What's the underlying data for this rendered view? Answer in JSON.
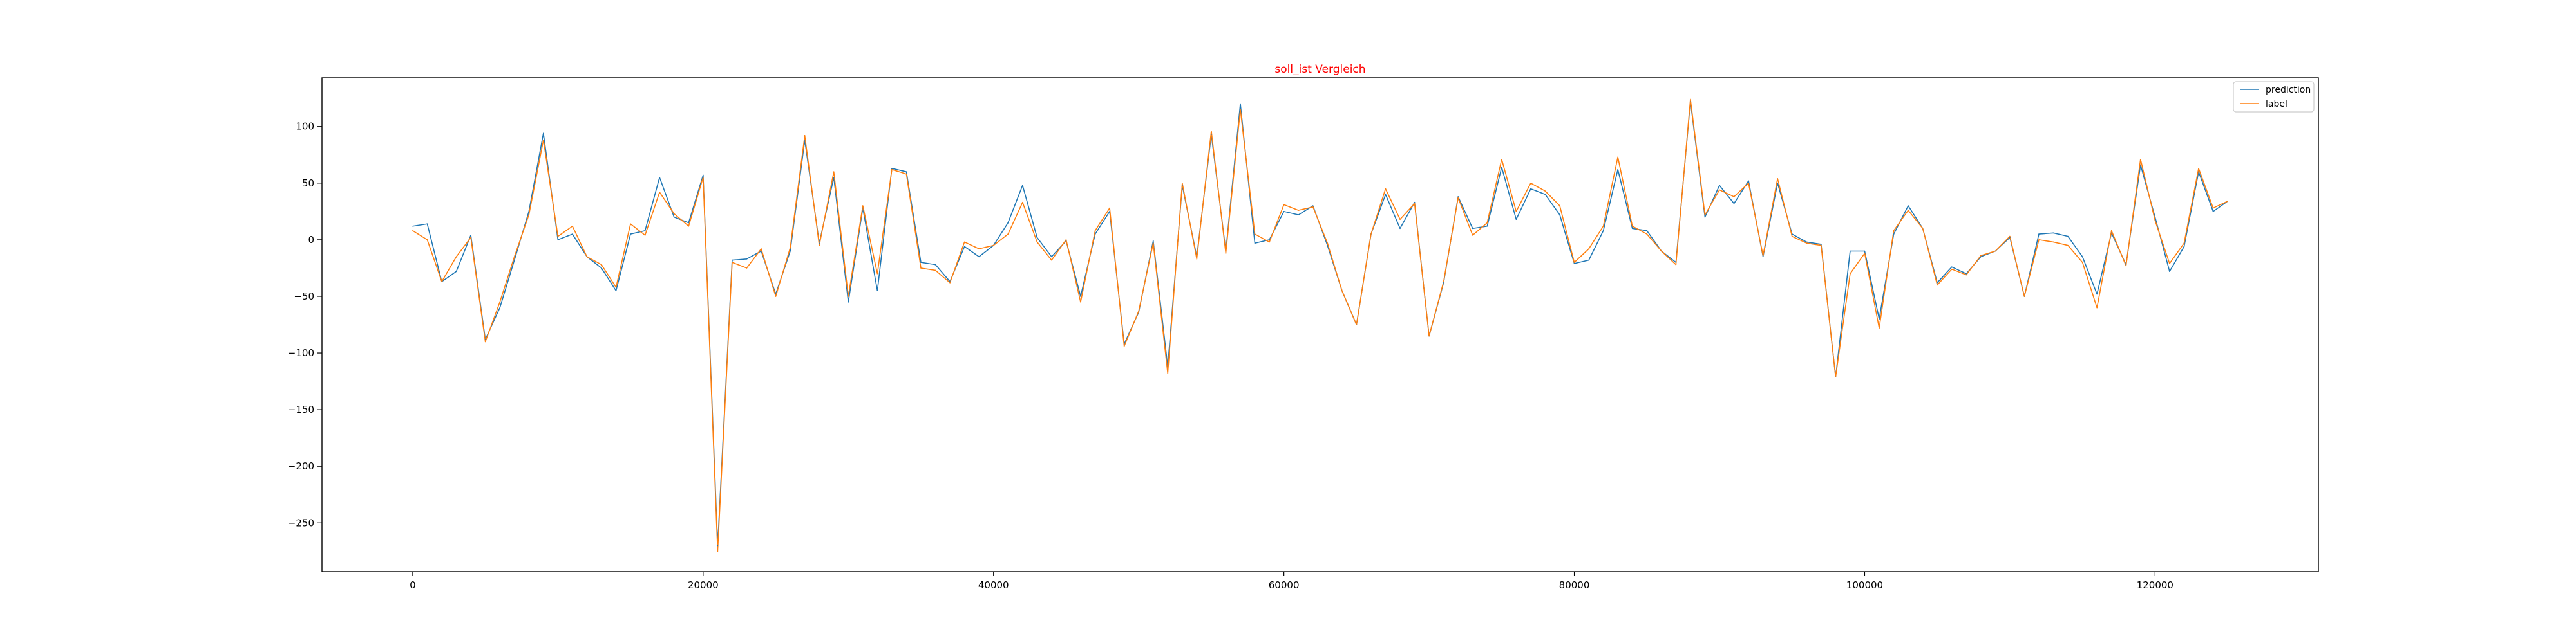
{
  "chart_data": {
    "type": "line",
    "title": "soll_ist Vergleich",
    "title_color": "#ff0000",
    "xlabel": "",
    "ylabel": "",
    "xlim": [
      -6250,
      131250
    ],
    "ylim": [
      -293,
      143
    ],
    "x_ticks": [
      0,
      20000,
      40000,
      60000,
      80000,
      100000,
      120000
    ],
    "x_tick_labels": [
      "0",
      "20000",
      "40000",
      "60000",
      "80000",
      "100000",
      "120000"
    ],
    "y_ticks": [
      -250,
      -200,
      -150,
      -100,
      -50,
      0,
      50,
      100
    ],
    "y_tick_labels": [
      "−250",
      "−200",
      "−150",
      "−100",
      "−50",
      "0",
      "50",
      "100"
    ],
    "grid": false,
    "legend_position": "top-right",
    "x_start": 0,
    "x_step": 1000,
    "series": [
      {
        "name": "prediction",
        "color": "#1f77b4",
        "values": [
          12,
          14,
          -37,
          -28,
          4,
          -88,
          -60,
          -18,
          25,
          94,
          0,
          5,
          -15,
          -25,
          -45,
          5,
          8,
          55,
          20,
          15,
          57,
          -270,
          -18,
          -17,
          -10,
          -48,
          -10,
          88,
          -3,
          55,
          -55,
          28,
          -45,
          63,
          60,
          -20,
          -22,
          -37,
          -6,
          -15,
          -5,
          15,
          48,
          2,
          -15,
          -1,
          -50,
          5,
          25,
          -92,
          -64,
          -1,
          -112,
          48,
          -15,
          93,
          -10,
          120,
          -3,
          0,
          25,
          22,
          30,
          -5,
          -45,
          -75,
          5,
          40,
          10,
          33,
          -85,
          -38,
          38,
          10,
          12,
          64,
          18,
          45,
          40,
          22,
          -21,
          -18,
          8,
          62,
          10,
          8,
          -10,
          -20,
          122,
          20,
          48,
          32,
          52,
          -15,
          50,
          5,
          -2,
          -4,
          -121,
          -10,
          -10,
          -70,
          5,
          30,
          10,
          -38,
          -24,
          -30,
          -15,
          -10,
          2,
          -50,
          5,
          6,
          3,
          -15,
          -48,
          6,
          -22,
          66,
          20,
          -28,
          -6,
          60,
          25,
          34
        ]
      },
      {
        "name": "label",
        "color": "#ff7f0e",
        "values": [
          8,
          0,
          -37,
          -15,
          2,
          -90,
          -55,
          -15,
          22,
          88,
          3,
          12,
          -15,
          -22,
          -42,
          14,
          4,
          42,
          23,
          12,
          55,
          -275,
          -20,
          -25,
          -8,
          -50,
          -7,
          92,
          -5,
          60,
          -50,
          30,
          -30,
          62,
          58,
          -25,
          -27,
          -38,
          -2,
          -8,
          -5,
          5,
          33,
          -2,
          -18,
          0,
          -55,
          8,
          28,
          -94,
          -63,
          -3,
          -118,
          50,
          -17,
          96,
          -12,
          115,
          5,
          -2,
          31,
          26,
          29,
          -3,
          -45,
          -75,
          5,
          45,
          18,
          32,
          -85,
          -37,
          37,
          4,
          15,
          71,
          25,
          50,
          43,
          30,
          -20,
          -8,
          12,
          73,
          12,
          5,
          -10,
          -22,
          124,
          22,
          44,
          38,
          50,
          -14,
          54,
          3,
          -3,
          -5,
          -121,
          -30,
          -12,
          -78,
          8,
          26,
          10,
          -40,
          -26,
          -31,
          -14,
          -10,
          3,
          -50,
          0,
          -2,
          -5,
          -20,
          -60,
          8,
          -23,
          71,
          17,
          -21,
          -3,
          63,
          28,
          34
        ]
      }
    ]
  }
}
